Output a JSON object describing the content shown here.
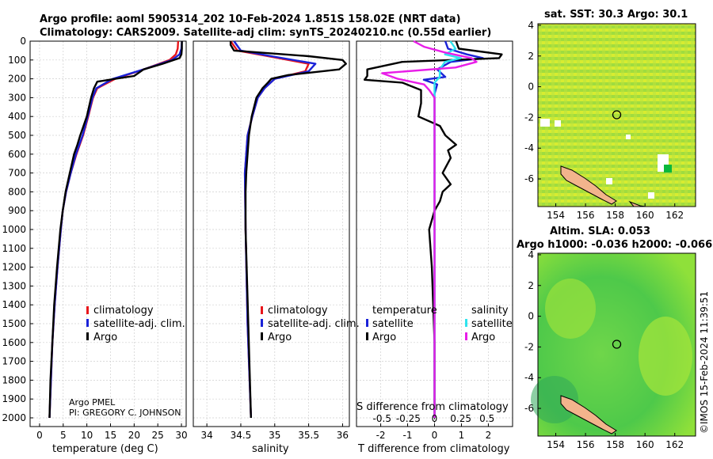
{
  "title": {
    "line1": "Argo profile: aoml 5905314_202 10-Feb-2024 1.851S 158.02E (NRT data)",
    "line2": "Climatology: CARS2009. Satellite-adj clim: synTS_20240210.nc (0.55d earlier)"
  },
  "colors": {
    "climatology": "#e8161b",
    "satellite_clim": "#1a22d8",
    "argo": "#000000",
    "sat_s": "#2fe4ee",
    "argo_s": "#e81ee8",
    "land": "#f2b48c"
  },
  "depth_axis": {
    "ticks": [
      "0",
      "100",
      "200",
      "300",
      "400",
      "500",
      "600",
      "700",
      "800",
      "900",
      "1000",
      "1100",
      "1200",
      "1300",
      "1400",
      "1500",
      "1600",
      "1700",
      "1800",
      "1900",
      "2000"
    ],
    "min": 0,
    "max": 2000
  },
  "credits": {
    "line1": "Argo PMEL",
    "line2": "PI: GREGORY C. JOHNSON"
  },
  "timestamp": "©IMOS 15-Feb-2024 11:39:51",
  "sst_map": {
    "title": "sat. SST: 30.3 Argo: 30.1",
    "xticks": [
      "154",
      "156",
      "158",
      "160",
      "162"
    ],
    "yticks": [
      "4",
      "2",
      "0",
      "-2",
      "-4",
      "-6"
    ]
  },
  "sla_map": {
    "title1": "Altim. SLA: 0.053",
    "title2": "Argo h1000: -0.036 h2000: -0.066",
    "xticks": [
      "154",
      "156",
      "158",
      "160",
      "162"
    ],
    "yticks": [
      "4",
      "2",
      "0",
      "-2",
      "-4",
      "-6"
    ]
  },
  "chart_data": [
    {
      "type": "line",
      "name": "temperature",
      "xlabel": "temperature (deg C)",
      "xlim": [
        -2,
        31
      ],
      "xticks": [
        "0",
        "5",
        "10",
        "15",
        "20",
        "25",
        "30"
      ],
      "legend": [
        "climatology",
        "satellite-adj. clim.",
        "Argo"
      ],
      "series": [
        {
          "name": "climatology",
          "depth": [
            0,
            40,
            70,
            100,
            150,
            200,
            250,
            300,
            400,
            500,
            600,
            700,
            800,
            900,
            1000,
            1200,
            1400,
            1600,
            1800,
            2000
          ],
          "values": [
            29.3,
            29.2,
            28.8,
            27.5,
            22,
            16,
            12.2,
            11.3,
            10.3,
            9.2,
            7.8,
            6.6,
            5.6,
            4.9,
            4.5,
            3.8,
            3.2,
            2.7,
            2.4,
            2.1
          ]
        },
        {
          "name": "satellite-adj. clim.",
          "depth": [
            0,
            40,
            70,
            100,
            150,
            200,
            250,
            300,
            400,
            500,
            600,
            700,
            800,
            900,
            1000,
            1200,
            1400,
            1600,
            1800,
            2000
          ],
          "values": [
            30.1,
            30.0,
            29.6,
            28.0,
            22,
            15.5,
            12.0,
            11.2,
            10.2,
            9.1,
            7.7,
            6.6,
            5.6,
            4.9,
            4.5,
            3.8,
            3.2,
            2.7,
            2.4,
            2.1
          ]
        },
        {
          "name": "Argo",
          "depth": [
            0,
            40,
            70,
            90,
            120,
            150,
            185,
            200,
            215,
            250,
            300,
            400,
            500,
            550,
            600,
            700,
            800,
            900,
            1000,
            1200,
            1400,
            1600,
            1800,
            2000
          ],
          "values": [
            30.1,
            30.1,
            30.0,
            29.6,
            26,
            22,
            20,
            16,
            12.2,
            11.5,
            10.9,
            10.0,
            8.6,
            8.0,
            7.3,
            6.4,
            5.5,
            4.9,
            4.4,
            3.7,
            3.1,
            2.7,
            2.3,
            2.1
          ]
        }
      ]
    },
    {
      "type": "line",
      "name": "salinity",
      "xlabel": "salinity",
      "xlim": [
        33.8,
        36.1
      ],
      "xticks": [
        "34",
        "34.5",
        "35",
        "35.5",
        "36"
      ],
      "legend": [
        "climatology",
        "satellite-adj. clim.",
        "Argo"
      ],
      "series": [
        {
          "name": "climatology",
          "depth": [
            0,
            50,
            80,
            120,
            160,
            200,
            250,
            300,
            400,
            500,
            700,
            1000,
            1500,
            2000
          ],
          "values": [
            34.35,
            34.45,
            34.9,
            35.5,
            35.45,
            35.0,
            34.85,
            34.75,
            34.67,
            34.6,
            34.56,
            34.57,
            34.6,
            34.65
          ]
        },
        {
          "name": "satellite-adj. clim.",
          "depth": [
            0,
            50,
            80,
            120,
            160,
            200,
            250,
            300,
            400,
            500,
            700,
            1000,
            1500,
            2000
          ],
          "values": [
            34.4,
            34.5,
            34.95,
            35.6,
            35.5,
            35.0,
            34.85,
            34.75,
            34.67,
            34.6,
            34.56,
            34.57,
            34.6,
            34.65
          ]
        },
        {
          "name": "Argo",
          "depth": [
            0,
            20,
            50,
            80,
            100,
            120,
            150,
            180,
            200,
            220,
            250,
            300,
            400,
            500,
            600,
            700,
            800,
            1000,
            1500,
            2000
          ],
          "values": [
            34.35,
            34.35,
            34.4,
            35.5,
            36.0,
            36.05,
            35.95,
            35.2,
            34.95,
            34.9,
            34.82,
            34.73,
            34.66,
            34.62,
            34.6,
            34.58,
            34.57,
            34.57,
            34.61,
            34.65
          ]
        }
      ]
    },
    {
      "type": "line",
      "name": "difference",
      "xlabel": "T difference from climatology",
      "xlabel2": "S difference from climatology",
      "xlim": [
        -2.9,
        2.9
      ],
      "xticks": [
        "-2",
        "-1",
        "0",
        "1",
        "2"
      ],
      "sticks": [
        "-0.5",
        "-0.25",
        "0",
        "0.25",
        "0.5"
      ],
      "legend_title_t": "temperature",
      "legend_title_s": "salinity",
      "legend": [
        "satellite",
        "Argo",
        "satellite",
        "Argo"
      ],
      "series": [
        {
          "name": "T satellite",
          "depth": [
            0,
            40,
            70,
            90,
            110,
            150,
            190,
            205,
            230,
            280,
            350,
            500,
            800,
            1200,
            1600,
            2000
          ],
          "values": [
            0.4,
            0.5,
            1.2,
            1.8,
            0.6,
            0.1,
            0.4,
            -0.4,
            0.1,
            0,
            0,
            0,
            0,
            0,
            0,
            0
          ]
        },
        {
          "name": "T Argo",
          "depth": [
            0,
            40,
            70,
            90,
            110,
            150,
            185,
            205,
            220,
            260,
            330,
            400,
            450,
            500,
            550,
            580,
            620,
            700,
            760,
            800,
            850,
            900,
            1000,
            1200,
            1600,
            2000
          ],
          "values": [
            0.8,
            0.9,
            2.5,
            2.4,
            -1.2,
            -2.5,
            -2.5,
            -2.6,
            -1.2,
            -0.5,
            -0.5,
            -0.6,
            0.2,
            0.4,
            0.8,
            0.5,
            0.6,
            0.3,
            0.6,
            0.3,
            0.2,
            0,
            -0.2,
            -0.1,
            0,
            0
          ]
        },
        {
          "name": "S satellite",
          "depth": [
            0,
            40,
            70,
            90,
            110,
            150,
            190,
            220,
            300,
            400,
            600,
            1000,
            1500,
            2000
          ],
          "values": [
            0.15,
            0.2,
            0.1,
            0.25,
            0.1,
            0.05,
            0.05,
            0,
            0,
            0,
            0,
            0,
            0,
            0
          ]
        },
        {
          "name": "S Argo",
          "depth": [
            0,
            30,
            60,
            90,
            110,
            140,
            170,
            200,
            230,
            260,
            300,
            400,
            600,
            1000,
            1500,
            2000
          ],
          "values": [
            -0.2,
            -0.1,
            0.1,
            0.35,
            0.4,
            0.2,
            -0.5,
            -0.35,
            -0.1,
            -0.05,
            0,
            0,
            0,
            0,
            0,
            0
          ]
        }
      ]
    }
  ]
}
